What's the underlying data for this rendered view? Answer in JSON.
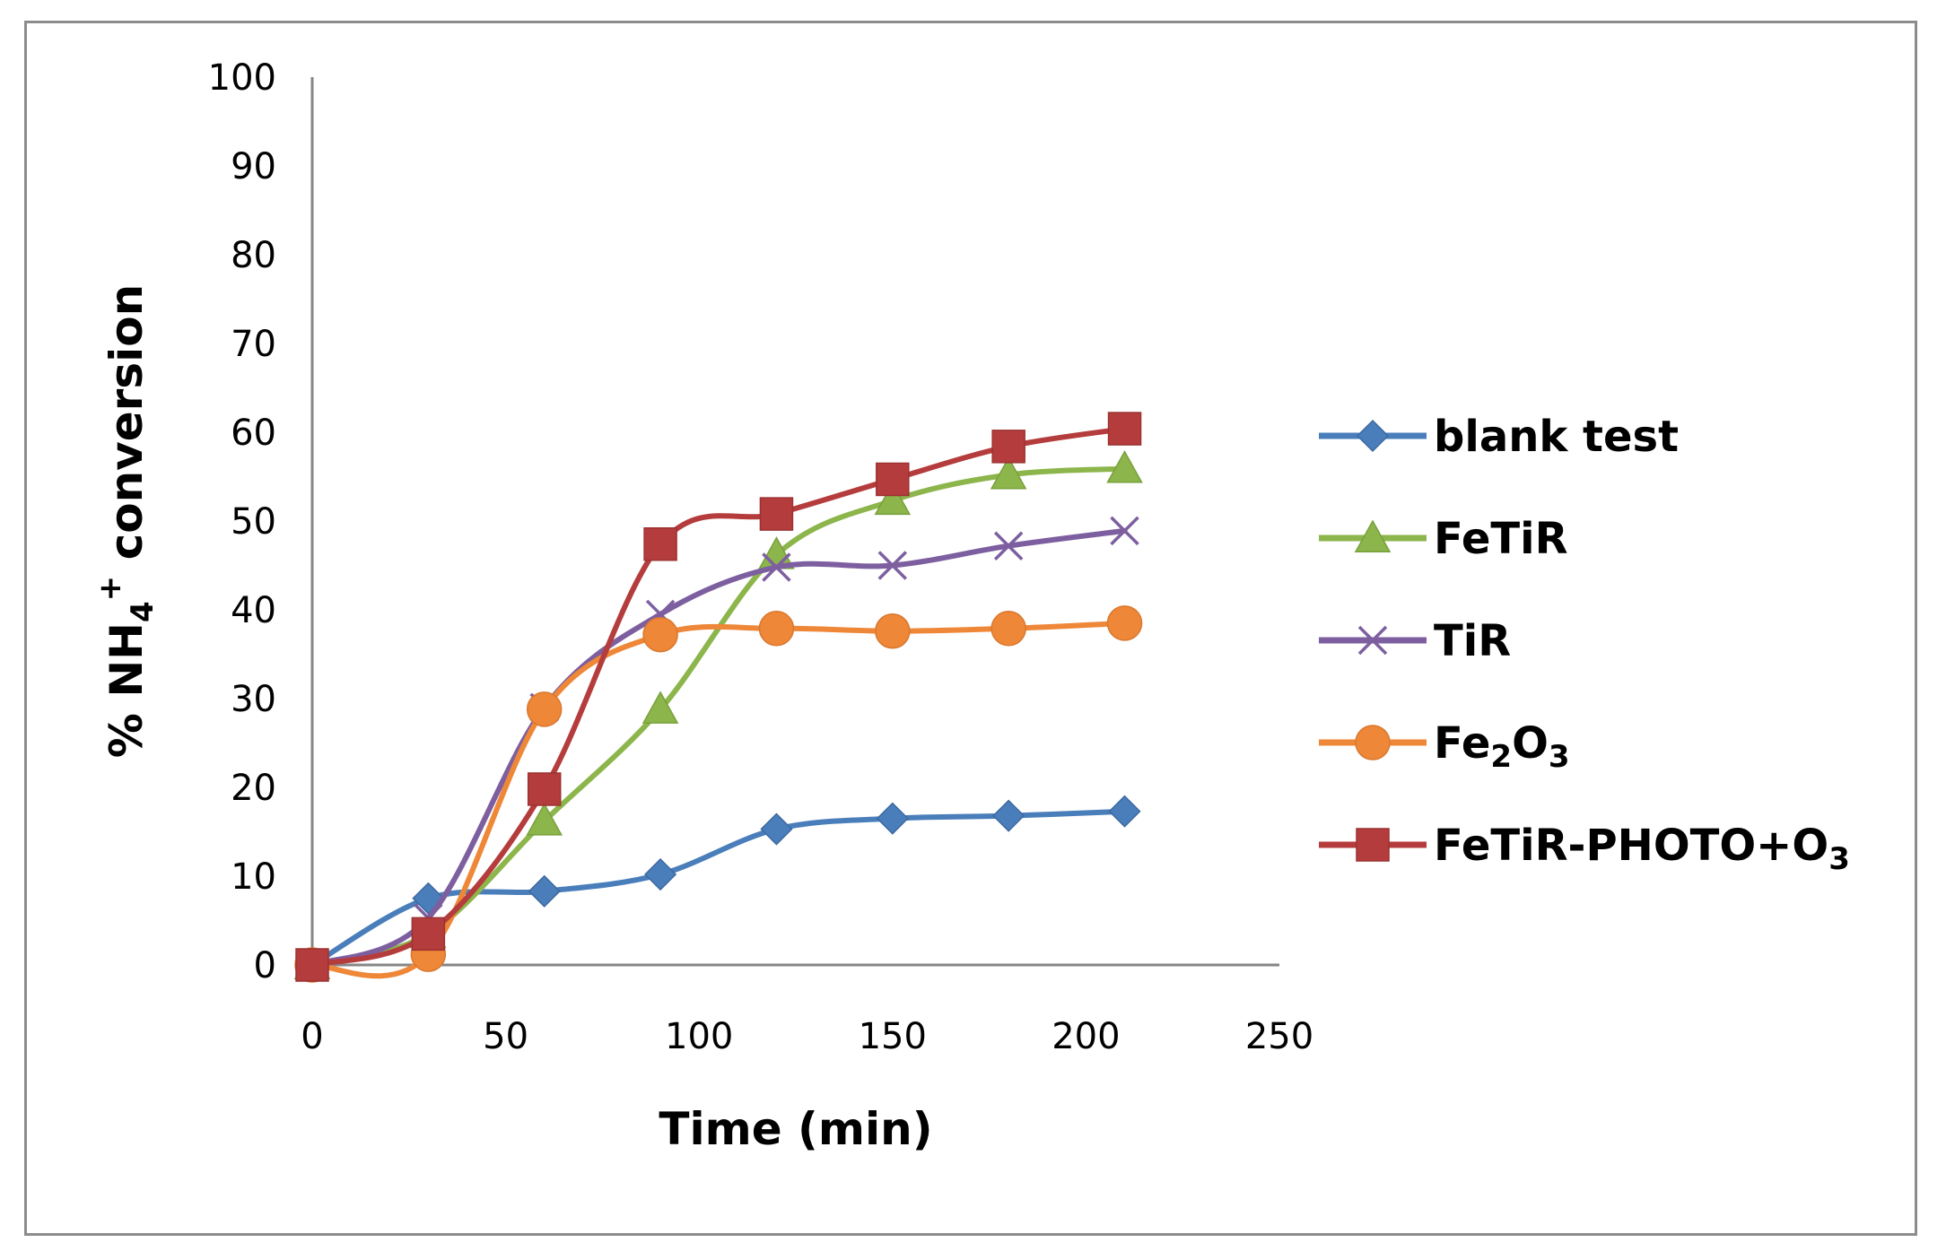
{
  "chart_data": {
    "type": "line",
    "title": "",
    "xlabel": "Time (min)",
    "ylabel_parts": {
      "prefix": "% NH",
      "sub": "4",
      "sup": "+",
      "suffix": " conversion"
    },
    "xlim": [
      0,
      250
    ],
    "ylim": [
      0,
      100
    ],
    "x_ticks": [
      0,
      50,
      100,
      150,
      200,
      250
    ],
    "y_ticks": [
      0,
      10,
      20,
      30,
      40,
      50,
      60,
      70,
      80,
      90,
      100
    ],
    "grid": false,
    "legend_position": "right",
    "x": [
      0,
      30,
      60,
      90,
      120,
      150,
      180,
      210
    ],
    "series": [
      {
        "name": "blank test",
        "legend": {
          "text": "blank test"
        },
        "color": "#4a7ebb",
        "marker": "diamond",
        "values": [
          0,
          7.5,
          8.3,
          10.2,
          15.3,
          16.5,
          16.8,
          17.3
        ]
      },
      {
        "name": "FeTiR",
        "legend": {
          "text": "FeTiR"
        },
        "color": "#8cb54b",
        "marker": "triangle",
        "values": [
          0,
          3.5,
          16.2,
          28.8,
          46.2,
          52.3,
          55.2,
          55.9
        ]
      },
      {
        "name": "TiR",
        "legend": {
          "text": "TiR"
        },
        "color": "#7d5fa0",
        "marker": "x",
        "values": [
          0,
          5.3,
          29.0,
          39.5,
          44.8,
          45.0,
          47.2,
          48.9
        ]
      },
      {
        "name": "Fe2O3",
        "legend": {
          "text": "Fe",
          "sub": "2",
          "text2": "O",
          "sub2": "3"
        },
        "color": "#ee8737",
        "marker": "circle",
        "values": [
          0,
          1.2,
          28.8,
          37.2,
          37.9,
          37.6,
          37.9,
          38.5
        ]
      },
      {
        "name": "FeTiR-PHOTO+O3",
        "legend": {
          "text": "FeTiR-PHOTO+O",
          "sub": "3"
        },
        "color": "#b53c3c",
        "marker": "square",
        "values": [
          0,
          3.5,
          19.8,
          47.4,
          50.8,
          54.7,
          58.4,
          60.4
        ]
      }
    ]
  }
}
